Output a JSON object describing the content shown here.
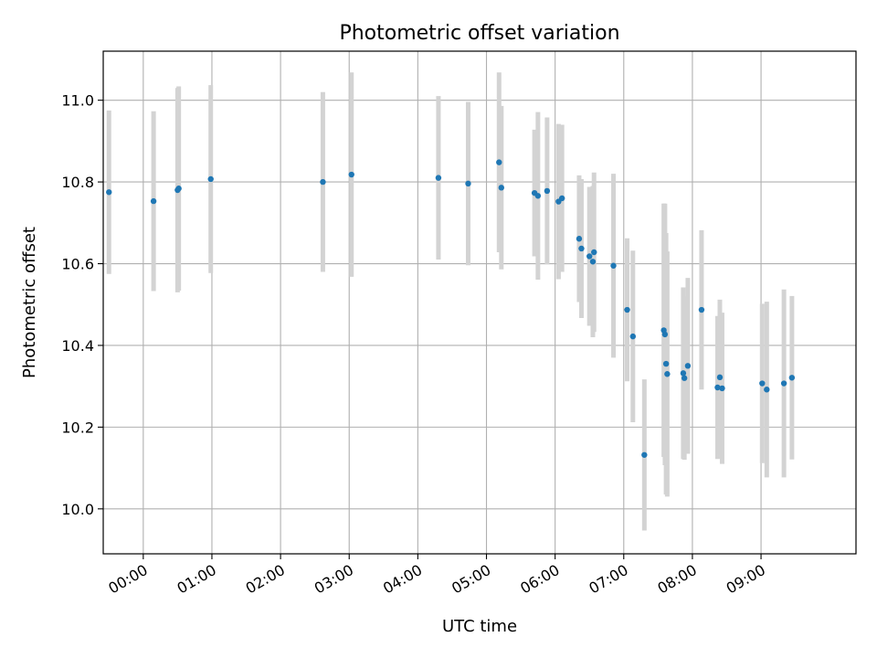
{
  "chart_data": {
    "type": "scatter",
    "title": "Photometric offset variation",
    "xlabel": "UTC time",
    "ylabel": "Photometric offset",
    "xlim": [
      "23:25",
      "10:23"
    ],
    "ylim": [
      9.89,
      11.12
    ],
    "grid": true,
    "xticks": [
      "00:00",
      "01:00",
      "02:00",
      "03:00",
      "04:00",
      "05:00",
      "06:00",
      "07:00",
      "08:00",
      "09:00"
    ],
    "yticks": [
      10.0,
      10.2,
      10.4,
      10.6,
      10.8,
      11.0
    ],
    "colors": {
      "points": "#1f77b4",
      "errorbars": "#d3d3d3",
      "grid": "#b0b0b0"
    },
    "series": [
      {
        "points": [
          {
            "x": "23:30",
            "y": 10.775,
            "err": 0.2
          },
          {
            "x": "00:09",
            "y": 10.753,
            "err": 0.22
          },
          {
            "x": "00:30",
            "y": 10.78,
            "err": 0.25
          },
          {
            "x": "00:31",
            "y": 10.784,
            "err": 0.25
          },
          {
            "x": "00:59",
            "y": 10.807,
            "err": 0.23
          },
          {
            "x": "02:37",
            "y": 10.8,
            "err": 0.22
          },
          {
            "x": "03:02",
            "y": 10.818,
            "err": 0.25
          },
          {
            "x": "04:18",
            "y": 10.81,
            "err": 0.2
          },
          {
            "x": "04:44",
            "y": 10.796,
            "err": 0.2
          },
          {
            "x": "05:11",
            "y": 10.848,
            "err": 0.22
          },
          {
            "x": "05:13",
            "y": 10.786,
            "err": 0.2
          },
          {
            "x": "05:42",
            "y": 10.773,
            "err": 0.155
          },
          {
            "x": "05:45",
            "y": 10.766,
            "err": 0.205
          },
          {
            "x": "05:53",
            "y": 10.778,
            "err": 0.18
          },
          {
            "x": "06:03",
            "y": 10.752,
            "err": 0.19
          },
          {
            "x": "06:06",
            "y": 10.76,
            "err": 0.18
          },
          {
            "x": "06:21",
            "y": 10.661,
            "err": 0.155
          },
          {
            "x": "06:23",
            "y": 10.637,
            "err": 0.17
          },
          {
            "x": "06:30",
            "y": 10.618,
            "err": 0.17
          },
          {
            "x": "06:33",
            "y": 10.605,
            "err": 0.185
          },
          {
            "x": "06:34",
            "y": 10.628,
            "err": 0.195
          },
          {
            "x": "06:51",
            "y": 10.595,
            "err": 0.225
          },
          {
            "x": "07:03",
            "y": 10.487,
            "err": 0.175
          },
          {
            "x": "07:08",
            "y": 10.422,
            "err": 0.21
          },
          {
            "x": "07:18",
            "y": 10.132,
            "err": 0.185
          },
          {
            "x": "07:35",
            "y": 10.437,
            "err": 0.31
          },
          {
            "x": "07:36",
            "y": 10.427,
            "err": 0.32
          },
          {
            "x": "07:37",
            "y": 10.355,
            "err": 0.32
          },
          {
            "x": "07:38",
            "y": 10.33,
            "err": 0.3
          },
          {
            "x": "07:52",
            "y": 10.332,
            "err": 0.21
          },
          {
            "x": "07:53",
            "y": 10.32,
            "err": 0.2
          },
          {
            "x": "07:56",
            "y": 10.35,
            "err": 0.215
          },
          {
            "x": "08:08",
            "y": 10.487,
            "err": 0.195
          },
          {
            "x": "08:22",
            "y": 10.297,
            "err": 0.175
          },
          {
            "x": "08:24",
            "y": 10.322,
            "err": 0.19
          },
          {
            "x": "08:26",
            "y": 10.295,
            "err": 0.185
          },
          {
            "x": "09:01",
            "y": 10.307,
            "err": 0.195
          },
          {
            "x": "09:05",
            "y": 10.292,
            "err": 0.215
          },
          {
            "x": "09:20",
            "y": 10.307,
            "err": 0.23
          },
          {
            "x": "09:27",
            "y": 10.321,
            "err": 0.2
          }
        ]
      }
    ]
  }
}
